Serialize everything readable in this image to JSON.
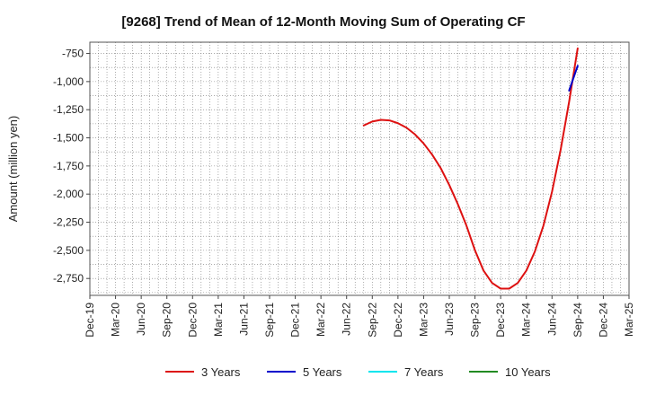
{
  "chart_data": {
    "type": "line",
    "title": "[9268]  Trend of Mean of 12-Month Moving Sum of Operating CF",
    "xlabel": "",
    "ylabel": "Amount (million yen)",
    "ylim": [
      -2900,
      -650
    ],
    "yticks": [
      -750,
      -1000,
      -1250,
      -1500,
      -1750,
      -2000,
      -2250,
      -2500,
      -2750
    ],
    "ytick_labels": [
      "-750",
      "-1,000",
      "-1,250",
      "-1,500",
      "-1,750",
      "-2,000",
      "-2,250",
      "-2,500",
      "-2,750"
    ],
    "xticks": [
      "Dec-19",
      "Mar-20",
      "Jun-20",
      "Sep-20",
      "Dec-20",
      "Mar-21",
      "Jun-21",
      "Sep-21",
      "Dec-21",
      "Mar-22",
      "Jun-22",
      "Sep-22",
      "Dec-22",
      "Mar-23",
      "Jun-23",
      "Sep-23",
      "Dec-23",
      "Mar-24",
      "Jun-24",
      "Sep-24",
      "Dec-24",
      "Mar-25"
    ],
    "grid": true,
    "legend_position": "bottom",
    "series": [
      {
        "name": "3 Years",
        "color": "#dd1111",
        "x": [
          "Aug-22",
          "Sep-22",
          "Oct-22",
          "Nov-22",
          "Dec-22",
          "Jan-23",
          "Feb-23",
          "Mar-23",
          "Apr-23",
          "May-23",
          "Jun-23",
          "Jul-23",
          "Aug-23",
          "Sep-23",
          "Oct-23",
          "Nov-23",
          "Dec-23",
          "Jan-24",
          "Feb-24",
          "Mar-24",
          "Apr-24",
          "May-24",
          "Jun-24",
          "Jul-24",
          "Aug-24",
          "Sep-24"
        ],
        "values": [
          -1390,
          -1355,
          -1340,
          -1345,
          -1370,
          -1410,
          -1470,
          -1550,
          -1650,
          -1770,
          -1920,
          -2090,
          -2280,
          -2500,
          -2680,
          -2790,
          -2840,
          -2840,
          -2790,
          -2680,
          -2510,
          -2280,
          -1980,
          -1610,
          -1180,
          -705
        ]
      },
      {
        "name": "5 Years",
        "color": "#0000cc",
        "x": [
          "Aug-24",
          "Sep-24"
        ],
        "values": [
          -1080,
          -860
        ]
      },
      {
        "name": "7 Years",
        "color": "#00e5ee",
        "x": [],
        "values": []
      },
      {
        "name": "10 Years",
        "color": "#228b22",
        "x": [],
        "values": []
      }
    ]
  }
}
